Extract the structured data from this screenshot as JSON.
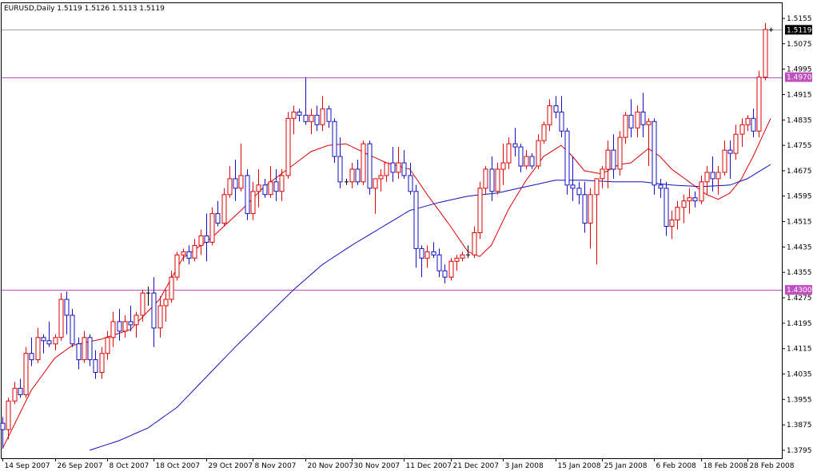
{
  "chart_data": {
    "type": "candlestick",
    "title": "EURUSD,Daily  1.5119 1.5126 1.5113 1.5119",
    "symbol": "EURUSD",
    "timeframe": "Daily",
    "last_bar": {
      "open": 1.5119,
      "high": 1.5126,
      "low": 1.5113,
      "close": 1.5119
    },
    "current_price_label": "1.5119",
    "y_ticks": [
      "1.5155",
      "1.5075",
      "1.4995",
      "1.4915",
      "1.4835",
      "1.4755",
      "1.4675",
      "1.4595",
      "1.4515",
      "1.4435",
      "1.4355",
      "1.4275",
      "1.4195",
      "1.4115",
      "1.4035",
      "1.3955",
      "1.3875",
      "1.3795"
    ],
    "ylim": [
      1.3795,
      1.5175
    ],
    "x_ticks": [
      "14 Sep 2007",
      "26 Sep 2007",
      "8 Oct 2007",
      "18 Oct 2007",
      "29 Oct 2007",
      "8 Nov 2007",
      "20 Nov 2007",
      "30 Nov 2007",
      "11 Dec 2007",
      "21 Dec 2007",
      "3 Jan 2008",
      "15 Jan 2008",
      "25 Jan 2008",
      "6 Feb 2008",
      "18 Feb 2008",
      "28 Feb 2008"
    ],
    "x_tick_bar_index": [
      0,
      9,
      18,
      26,
      35,
      43,
      52,
      60,
      69,
      77,
      86,
      95,
      103,
      112,
      120,
      128
    ],
    "horizontal_levels": [
      {
        "value": 1.497,
        "label": "1.4970",
        "color": "#c050c0"
      },
      {
        "value": 1.43,
        "label": "1.4300",
        "color": "#c050c0"
      },
      {
        "value": 1.5119,
        "label": "1.5119",
        "color": "#a0a0a0"
      }
    ],
    "moving_averages": [
      {
        "color": "#dd0000",
        "anchors": [
          [
            0,
            1.38
          ],
          [
            5,
            1.3985
          ],
          [
            9,
            1.4085
          ],
          [
            12,
            1.4125
          ],
          [
            17,
            1.4145
          ],
          [
            22,
            1.4175
          ],
          [
            27,
            1.427
          ],
          [
            31,
            1.44
          ],
          [
            36,
            1.4465
          ],
          [
            41,
            1.455
          ],
          [
            45,
            1.4625
          ],
          [
            49,
            1.468
          ],
          [
            53,
            1.4735
          ],
          [
            56,
            1.4755
          ],
          [
            59,
            1.476
          ],
          [
            63,
            1.4725
          ],
          [
            66,
            1.47
          ],
          [
            70,
            1.468
          ],
          [
            73,
            1.46
          ],
          [
            77,
            1.45
          ],
          [
            80,
            1.442
          ],
          [
            82,
            1.4405
          ],
          [
            84,
            1.444
          ],
          [
            87,
            1.4555
          ],
          [
            90,
            1.4645
          ],
          [
            93,
            1.472
          ],
          [
            96,
            1.4755
          ],
          [
            98,
            1.472
          ],
          [
            100,
            1.4675
          ],
          [
            103,
            1.4665
          ],
          [
            106,
            1.4695
          ],
          [
            108,
            1.47
          ],
          [
            111,
            1.4745
          ],
          [
            113,
            1.472
          ],
          [
            115,
            1.468
          ],
          [
            118,
            1.464
          ],
          [
            121,
            1.46
          ],
          [
            123,
            1.4585
          ],
          [
            125,
            1.4605
          ],
          [
            127,
            1.465
          ],
          [
            129,
            1.472
          ],
          [
            131,
            1.48
          ],
          [
            132,
            1.484
          ]
        ]
      },
      {
        "color": "#1010c0",
        "anchors": [
          [
            15,
            1.3795
          ],
          [
            20,
            1.3825
          ],
          [
            25,
            1.3865
          ],
          [
            30,
            1.393
          ],
          [
            35,
            1.4025
          ],
          [
            40,
            1.412
          ],
          [
            45,
            1.421
          ],
          [
            50,
            1.43
          ],
          [
            55,
            1.438
          ],
          [
            60,
            1.444
          ],
          [
            65,
            1.4495
          ],
          [
            70,
            1.455
          ],
          [
            75,
            1.4575
          ],
          [
            80,
            1.4595
          ],
          [
            85,
            1.4605
          ],
          [
            90,
            1.4625
          ],
          [
            95,
            1.4645
          ],
          [
            100,
            1.4645
          ],
          [
            105,
            1.464
          ],
          [
            110,
            1.464
          ],
          [
            115,
            1.463
          ],
          [
            120,
            1.4625
          ],
          [
            125,
            1.463
          ],
          [
            128,
            1.465
          ],
          [
            132,
            1.4695
          ]
        ]
      }
    ],
    "colors": {
      "up": "#dd0000",
      "down": "#1010c0",
      "background": "#ffffff",
      "grid": "#c0c0c0",
      "level": "#c050c0"
    },
    "candles": [
      [
        1.388,
        1.39,
        1.38,
        1.386
      ],
      [
        1.386,
        1.396,
        1.383,
        1.395
      ],
      [
        1.395,
        1.401,
        1.394,
        1.399
      ],
      [
        1.399,
        1.402,
        1.396,
        1.397
      ],
      [
        1.397,
        1.412,
        1.396,
        1.41
      ],
      [
        1.41,
        1.415,
        1.406,
        1.408
      ],
      [
        1.408,
        1.418,
        1.407,
        1.415
      ],
      [
        1.415,
        1.416,
        1.41,
        1.414
      ],
      [
        1.414,
        1.42,
        1.412,
        1.413
      ],
      [
        1.413,
        1.416,
        1.411,
        1.415
      ],
      [
        1.415,
        1.429,
        1.414,
        1.427
      ],
      [
        1.427,
        1.4295,
        1.416,
        1.422
      ],
      [
        1.422,
        1.424,
        1.412,
        1.413
      ],
      [
        1.413,
        1.415,
        1.405,
        1.408
      ],
      [
        1.408,
        1.417,
        1.407,
        1.415
      ],
      [
        1.415,
        1.416,
        1.406,
        1.408
      ],
      [
        1.408,
        1.411,
        1.402,
        1.404
      ],
      [
        1.404,
        1.412,
        1.402,
        1.41
      ],
      [
        1.41,
        1.417,
        1.408,
        1.415
      ],
      [
        1.415,
        1.423,
        1.412,
        1.42
      ],
      [
        1.42,
        1.424,
        1.414,
        1.417
      ],
      [
        1.417,
        1.422,
        1.415,
        1.42
      ],
      [
        1.42,
        1.425,
        1.417,
        1.419
      ],
      [
        1.419,
        1.423,
        1.415,
        1.422
      ],
      [
        1.422,
        1.43,
        1.42,
        1.429
      ],
      [
        1.429,
        1.431,
        1.425,
        1.429
      ],
      [
        1.429,
        1.434,
        1.412,
        1.418
      ],
      [
        1.418,
        1.428,
        1.415,
        1.425
      ],
      [
        1.425,
        1.43,
        1.42,
        1.427
      ],
      [
        1.427,
        1.436,
        1.426,
        1.434
      ],
      [
        1.434,
        1.442,
        1.433,
        1.441
      ],
      [
        1.441,
        1.443,
        1.439,
        1.442
      ],
      [
        1.442,
        1.444,
        1.438,
        1.44
      ],
      [
        1.44,
        1.446,
        1.439,
        1.444
      ],
      [
        1.444,
        1.449,
        1.441,
        1.447
      ],
      [
        1.447,
        1.454,
        1.439,
        1.445
      ],
      [
        1.445,
        1.456,
        1.444,
        1.454
      ],
      [
        1.454,
        1.458,
        1.45,
        1.451
      ],
      [
        1.451,
        1.462,
        1.45,
        1.46
      ],
      [
        1.46,
        1.469,
        1.459,
        1.465
      ],
      [
        1.465,
        1.471,
        1.458,
        1.462
      ],
      [
        1.462,
        1.476,
        1.461,
        1.466
      ],
      [
        1.466,
        1.468,
        1.452,
        1.454
      ],
      [
        1.454,
        1.464,
        1.452,
        1.461
      ],
      [
        1.461,
        1.468,
        1.456,
        1.463
      ],
      [
        1.463,
        1.465,
        1.459,
        1.46
      ],
      [
        1.46,
        1.469,
        1.459,
        1.464
      ],
      [
        1.464,
        1.468,
        1.458,
        1.461
      ],
      [
        1.461,
        1.468,
        1.458,
        1.466
      ],
      [
        1.466,
        1.486,
        1.465,
        1.484
      ],
      [
        1.484,
        1.488,
        1.479,
        1.486
      ],
      [
        1.486,
        1.487,
        1.483,
        1.485
      ],
      [
        1.485,
        1.497,
        1.482,
        1.483
      ],
      [
        1.483,
        1.487,
        1.479,
        1.485
      ],
      [
        1.485,
        1.488,
        1.48,
        1.482
      ],
      [
        1.482,
        1.491,
        1.48,
        1.487
      ],
      [
        1.487,
        1.488,
        1.481,
        1.483
      ],
      [
        1.483,
        1.484,
        1.47,
        1.472
      ],
      [
        1.472,
        1.478,
        1.462,
        1.464
      ],
      [
        1.464,
        1.465,
        1.463,
        1.464
      ],
      [
        1.464,
        1.47,
        1.462,
        1.468
      ],
      [
        1.468,
        1.471,
        1.463,
        1.464
      ],
      [
        1.464,
        1.477,
        1.463,
        1.476
      ],
      [
        1.476,
        1.477,
        1.46,
        1.462
      ],
      [
        1.462,
        1.465,
        1.454,
        1.465
      ],
      [
        1.465,
        1.468,
        1.461,
        1.466
      ],
      [
        1.466,
        1.47,
        1.464,
        1.47
      ],
      [
        1.47,
        1.475,
        1.464,
        1.467
      ],
      [
        1.467,
        1.475,
        1.465,
        1.47
      ],
      [
        1.47,
        1.474,
        1.465,
        1.466
      ],
      [
        1.466,
        1.47,
        1.46,
        1.461
      ],
      [
        1.461,
        1.463,
        1.437,
        1.443
      ],
      [
        1.443,
        1.444,
        1.434,
        1.44
      ],
      [
        1.44,
        1.444,
        1.437,
        1.442
      ],
      [
        1.442,
        1.445,
        1.44,
        1.441
      ],
      [
        1.441,
        1.443,
        1.434,
        1.436
      ],
      [
        1.436,
        1.438,
        1.432,
        1.434
      ],
      [
        1.434,
        1.44,
        1.433,
        1.439
      ],
      [
        1.439,
        1.441,
        1.436,
        1.44
      ],
      [
        1.44,
        1.442,
        1.439,
        1.441
      ],
      [
        1.441,
        1.444,
        1.44,
        1.441
      ],
      [
        1.441,
        1.45,
        1.44,
        1.448
      ],
      [
        1.448,
        1.464,
        1.446,
        1.462
      ],
      [
        1.462,
        1.469,
        1.46,
        1.468
      ],
      [
        1.468,
        1.472,
        1.458,
        1.461
      ],
      [
        1.461,
        1.47,
        1.46,
        1.468
      ],
      [
        1.468,
        1.476,
        1.463,
        1.47
      ],
      [
        1.47,
        1.478,
        1.468,
        1.476
      ],
      [
        1.476,
        1.481,
        1.472,
        1.475
      ],
      [
        1.475,
        1.476,
        1.467,
        1.469
      ],
      [
        1.469,
        1.474,
        1.468,
        1.472
      ],
      [
        1.472,
        1.473,
        1.468,
        1.469
      ],
      [
        1.469,
        1.479,
        1.468,
        1.477
      ],
      [
        1.477,
        1.483,
        1.476,
        1.482
      ],
      [
        1.482,
        1.49,
        1.48,
        1.488
      ],
      [
        1.488,
        1.491,
        1.484,
        1.486
      ],
      [
        1.486,
        1.491,
        1.478,
        1.48
      ],
      [
        1.48,
        1.481,
        1.46,
        1.463
      ],
      [
        1.463,
        1.472,
        1.458,
        1.462
      ],
      [
        1.462,
        1.464,
        1.457,
        1.46
      ],
      [
        1.46,
        1.464,
        1.448,
        1.451
      ],
      [
        1.451,
        1.462,
        1.443,
        1.46
      ],
      [
        1.46,
        1.464,
        1.438,
        1.465
      ],
      [
        1.465,
        1.469,
        1.462,
        1.468
      ],
      [
        1.468,
        1.477,
        1.462,
        1.474
      ],
      [
        1.474,
        1.479,
        1.465,
        1.468
      ],
      [
        1.468,
        1.48,
        1.466,
        1.478
      ],
      [
        1.478,
        1.486,
        1.476,
        1.485
      ],
      [
        1.485,
        1.49,
        1.478,
        1.481
      ],
      [
        1.481,
        1.488,
        1.478,
        1.486
      ],
      [
        1.486,
        1.492,
        1.478,
        1.482
      ],
      [
        1.482,
        1.484,
        1.469,
        1.483
      ],
      [
        1.483,
        1.484,
        1.46,
        1.463
      ],
      [
        1.463,
        1.465,
        1.459,
        1.462
      ],
      [
        1.462,
        1.464,
        1.447,
        1.45
      ],
      [
        1.45,
        1.455,
        1.446,
        1.452
      ],
      [
        1.452,
        1.458,
        1.449,
        1.456
      ],
      [
        1.456,
        1.46,
        1.451,
        1.458
      ],
      [
        1.458,
        1.462,
        1.454,
        1.459
      ],
      [
        1.459,
        1.461,
        1.456,
        1.458
      ],
      [
        1.458,
        1.466,
        1.457,
        1.464
      ],
      [
        1.464,
        1.469,
        1.46,
        1.467
      ],
      [
        1.467,
        1.472,
        1.461,
        1.465
      ],
      [
        1.465,
        1.469,
        1.46,
        1.467
      ],
      [
        1.467,
        1.477,
        1.466,
        1.474
      ],
      [
        1.474,
        1.477,
        1.465,
        1.473
      ],
      [
        1.473,
        1.482,
        1.471,
        1.479
      ],
      [
        1.479,
        1.484,
        1.475,
        1.482
      ],
      [
        1.482,
        1.485,
        1.48,
        1.484
      ],
      [
        1.484,
        1.487,
        1.478,
        1.48
      ],
      [
        1.48,
        1.499,
        1.478,
        1.497
      ],
      [
        1.497,
        1.514,
        1.496,
        1.512
      ],
      [
        1.5119,
        1.5126,
        1.5113,
        1.5119
      ]
    ]
  }
}
